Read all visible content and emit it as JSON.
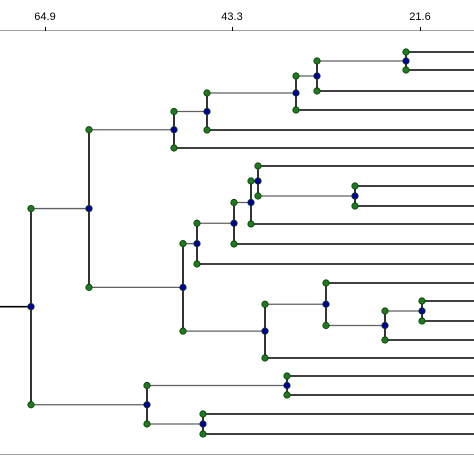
{
  "scale": {
    "ticks": [
      {
        "label": "64.9"
      },
      {
        "label": "43.3"
      },
      {
        "label": "21.6"
      }
    ]
  },
  "colors": {
    "branch": "#000000",
    "connector": "#606060",
    "internal_node": "#0000a0",
    "edge_node": "#1e7a1e",
    "node_stroke": "#0a3d0a"
  }
}
